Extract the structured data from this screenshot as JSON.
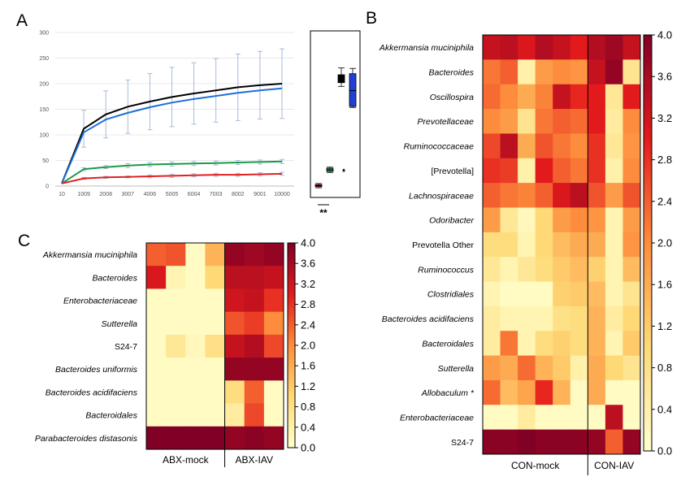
{
  "panel_labels": {
    "a": "A",
    "b": "B",
    "c": "C"
  },
  "chart_data": [
    {
      "type": "line",
      "panel": "A",
      "x": [
        "10",
        "1009",
        "2008",
        "3007",
        "4006",
        "5005",
        "6004",
        "7003",
        "8002",
        "9001",
        "10000"
      ],
      "y_ticks": [
        "0",
        "50",
        "100",
        "150",
        "200",
        "250",
        "300"
      ],
      "ylim": [
        0,
        300
      ],
      "grid": true,
      "series": [
        {
          "color": "#000000",
          "values": [
            5,
            112,
            140,
            155,
            165,
            174,
            181,
            187,
            193,
            197,
            200
          ],
          "err": [
            0,
            36,
            46,
            52,
            55,
            58,
            60,
            62,
            65,
            66,
            68
          ]
        },
        {
          "color": "#1f6fd6",
          "values": [
            5,
            105,
            130,
            143,
            154,
            163,
            170,
            176,
            182,
            187,
            191
          ],
          "err": [
            0,
            0,
            0,
            0,
            0,
            0,
            0,
            0,
            0,
            0,
            0
          ]
        },
        {
          "color": "#1a9a4a",
          "values": [
            5,
            33,
            37,
            40,
            42,
            43,
            44,
            45,
            46,
            47,
            48
          ],
          "err": [
            0,
            3,
            3,
            4,
            4,
            4,
            4,
            4,
            4,
            4,
            4
          ]
        },
        {
          "color": "#e02020",
          "values": [
            5,
            15,
            17,
            18,
            19,
            20,
            21,
            22,
            22,
            23,
            24
          ],
          "err": [
            0,
            2,
            2,
            2,
            3,
            3,
            3,
            3,
            3,
            3,
            3
          ]
        }
      ]
    },
    {
      "type": "box",
      "panel": "A-inset",
      "ylim": [
        0,
        300
      ],
      "significance": "**",
      "boxes": [
        {
          "color": "#e02020",
          "median": 10,
          "q1": 8,
          "q3": 12,
          "min": 6,
          "max": 14
        },
        {
          "color": "#1a9a4a",
          "median": 40,
          "q1": 37,
          "q3": 43,
          "min": 35,
          "max": 45
        },
        {
          "color": "#777777",
          "median": 40,
          "q1": 40,
          "q3": 40,
          "min": 39,
          "max": 41
        },
        {
          "color": "#000000",
          "median": 212,
          "q1": 205,
          "q3": 220,
          "min": 198,
          "max": 233
        },
        {
          "color": "#1f3fd6",
          "median": 190,
          "q1": 160,
          "q3": 222,
          "min": 158,
          "max": 232
        }
      ]
    },
    {
      "type": "heatmap",
      "panel": "B",
      "rows": [
        {
          "label": "Akkermansia muciniphila",
          "italic": true,
          "values": [
            3.3,
            3.4,
            3.1,
            3.5,
            3.3,
            3.0,
            3.5,
            3.7,
            3.3
          ]
        },
        {
          "label": "Bacteroides",
          "italic": true,
          "values": [
            2.2,
            2.4,
            0.4,
            1.8,
            2.0,
            1.9,
            3.3,
            3.8,
            0.7
          ]
        },
        {
          "label": "Oscillospira",
          "italic": true,
          "values": [
            2.3,
            2.0,
            1.6,
            2.1,
            3.3,
            2.9,
            3.0,
            0.6,
            3.0
          ]
        },
        {
          "label": "Prevotellaceae",
          "italic": true,
          "values": [
            2.0,
            1.8,
            0.7,
            2.2,
            2.4,
            2.3,
            3.0,
            0.5,
            2.0
          ]
        },
        {
          "label": "Ruminococcaceae",
          "italic": true,
          "values": [
            2.6,
            3.4,
            1.6,
            2.5,
            2.2,
            2.0,
            2.8,
            0.6,
            1.9
          ]
        },
        {
          "label": "[Prevotella]",
          "italic": false,
          "values": [
            2.8,
            2.7,
            0.4,
            3.0,
            2.4,
            2.2,
            2.8,
            0.4,
            2.0
          ]
        },
        {
          "label": "Lachnospiraceae",
          "italic": true,
          "values": [
            2.4,
            2.2,
            2.1,
            2.4,
            3.1,
            3.4,
            2.5,
            1.8,
            2.5
          ]
        },
        {
          "label": "Odoribacter",
          "italic": true,
          "values": [
            1.8,
            0.6,
            0.2,
            1.0,
            1.8,
            2.0,
            1.9,
            0.3,
            1.8
          ]
        },
        {
          "label": "Prevotella Other",
          "italic": false,
          "values": [
            0.9,
            0.9,
            0.3,
            1.0,
            1.4,
            1.6,
            1.6,
            0.3,
            1.9
          ]
        },
        {
          "label": "Ruminococcus",
          "italic": true,
          "values": [
            0.6,
            0.3,
            0.6,
            0.9,
            1.2,
            1.4,
            1.1,
            0.3,
            1.4
          ]
        },
        {
          "label": "Clostridiales",
          "italic": true,
          "values": [
            0.3,
            0.1,
            0.1,
            0.1,
            1.1,
            1.2,
            1.4,
            0.3,
            0.7
          ]
        },
        {
          "label": "Bacteroides acidifaciens",
          "italic": true,
          "values": [
            0.5,
            0.3,
            0.3,
            0.3,
            0.8,
            0.9,
            1.5,
            0.5,
            1.0
          ]
        },
        {
          "label": "Bacteroidales",
          "italic": true,
          "values": [
            0.5,
            2.2,
            0.3,
            0.9,
            1.1,
            0.9,
            1.5,
            0.3,
            1.2
          ]
        },
        {
          "label": "Sutterella",
          "italic": true,
          "values": [
            1.8,
            1.6,
            2.3,
            1.5,
            1.2,
            0.4,
            1.6,
            1.0,
            0.7
          ]
        },
        {
          "label": "Allobaculum *",
          "italic": true,
          "values": [
            2.3,
            1.4,
            1.7,
            2.9,
            1.5,
            0.1,
            1.6,
            0.1,
            0.1
          ]
        },
        {
          "label": "Enterobacteriaceae",
          "italic": true,
          "values": [
            0.1,
            0.1,
            0.5,
            0.1,
            0.1,
            0.1,
            0.1,
            3.4,
            0.1
          ]
        },
        {
          "label": "S24-7",
          "italic": false,
          "values": [
            3.9,
            3.9,
            4.0,
            3.9,
            3.9,
            3.9,
            3.8,
            2.4,
            3.8
          ]
        }
      ],
      "groups": [
        {
          "label": "CON-mock",
          "columns": 6
        },
        {
          "label": "CON-IAV",
          "columns": 3
        }
      ],
      "colorbar": {
        "min": 0,
        "max": 4,
        "ticks": [
          "0.0",
          "0.4",
          "0.8",
          "1.2",
          "1.6",
          "2.0",
          "2.4",
          "2.8",
          "3.2",
          "3.6",
          "4.0"
        ]
      }
    },
    {
      "type": "heatmap",
      "panel": "C",
      "rows": [
        {
          "label": "Akkermansia muciniphila",
          "italic": true,
          "values": [
            2.4,
            2.5,
            0.1,
            1.5,
            3.8,
            3.7,
            3.8
          ]
        },
        {
          "label": "Bacteroides",
          "italic": true,
          "values": [
            3.1,
            0.3,
            0.1,
            1.0,
            3.4,
            3.4,
            3.3
          ]
        },
        {
          "label": "Enterobacteriaceae",
          "italic": true,
          "values": [
            0.1,
            0.1,
            0.1,
            0.1,
            3.2,
            3.3,
            2.8
          ]
        },
        {
          "label": "Sutterella",
          "italic": true,
          "values": [
            0.1,
            0.1,
            0.1,
            0.1,
            2.5,
            2.7,
            2.0
          ]
        },
        {
          "label": "S24-7",
          "italic": false,
          "values": [
            0.1,
            0.6,
            0.2,
            0.8,
            3.3,
            3.5,
            2.6
          ]
        },
        {
          "label": "Bacteroides uniformis",
          "italic": true,
          "values": [
            0.1,
            0.1,
            0.1,
            0.1,
            3.8,
            3.8,
            3.8
          ]
        },
        {
          "label": "Bacteroides acidifaciens",
          "italic": true,
          "values": [
            0.1,
            0.1,
            0.1,
            0.1,
            0.9,
            2.4,
            0.1
          ]
        },
        {
          "label": "Bacteroidales",
          "italic": true,
          "values": [
            0.1,
            0.1,
            0.1,
            0.1,
            0.5,
            2.6,
            0.1
          ]
        },
        {
          "label": "Parabacteroides distasonis",
          "italic": true,
          "values": [
            4.0,
            4.0,
            4.0,
            4.0,
            3.8,
            3.9,
            3.8
          ]
        }
      ],
      "groups": [
        {
          "label": "ABX-mock",
          "columns": 4
        },
        {
          "label": "ABX-IAV",
          "columns": 3
        }
      ],
      "colorbar": {
        "min": 0,
        "max": 4,
        "ticks": [
          "0.0",
          "0.4",
          "0.8",
          "1.2",
          "1.6",
          "2.0",
          "2.4",
          "2.8",
          "3.2",
          "3.6",
          "4.0"
        ]
      }
    }
  ]
}
